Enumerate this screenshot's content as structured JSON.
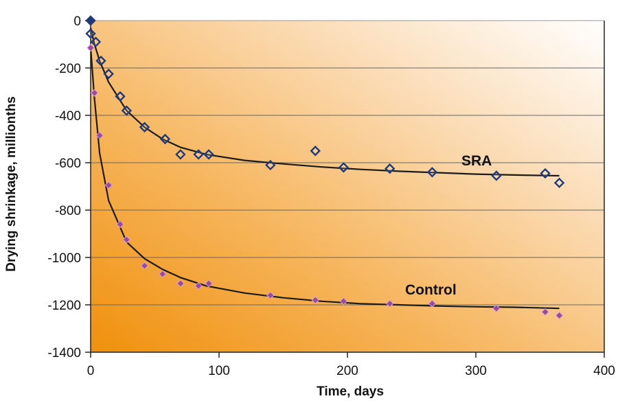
{
  "chart_data": {
    "type": "scatter",
    "title": "",
    "xlabel": "Time, days",
    "ylabel": "Drying shrinkage, millionths",
    "xlim": [
      0,
      400
    ],
    "ylim": [
      -1400,
      0
    ],
    "x_ticks": [
      "0",
      "100",
      "200",
      "300",
      "400"
    ],
    "y_ticks": [
      "0",
      "-200",
      "-400",
      "-600",
      "-800",
      "-1000",
      "-1200",
      "-1400"
    ],
    "grid": "horizontal",
    "background": "orange gradient",
    "series": [
      {
        "name": "SRA",
        "marker": "diamond-open",
        "color": "#1f3a7a",
        "x": [
          0,
          0,
          4,
          8,
          14,
          23,
          28,
          42,
          58,
          70,
          84,
          92,
          140,
          175,
          197,
          233,
          266,
          316,
          354,
          365
        ],
        "y": [
          0,
          -55,
          -90,
          -170,
          -225,
          -320,
          -380,
          -450,
          -500,
          -565,
          -565,
          -565,
          -610,
          -550,
          -620,
          -625,
          -640,
          -655,
          -645,
          -685
        ],
        "trend_x": [
          0,
          3,
          7,
          14,
          28,
          42,
          56,
          70,
          90,
          120,
          150,
          180,
          210,
          240,
          270,
          300,
          330,
          365
        ],
        "trend_y": [
          -30,
          -100,
          -170,
          -260,
          -380,
          -450,
          -500,
          -535,
          -565,
          -590,
          -605,
          -618,
          -628,
          -636,
          -642,
          -648,
          -652,
          -655
        ]
      },
      {
        "name": "Control",
        "marker": "diamond-filled",
        "color": "#9a4a9a",
        "x": [
          0,
          3,
          7,
          14,
          23,
          28,
          42,
          56,
          70,
          84,
          92,
          140,
          175,
          197,
          233,
          266,
          316,
          354,
          365
        ],
        "y": [
          -115,
          -305,
          -485,
          -695,
          -860,
          -925,
          -1035,
          -1070,
          -1110,
          -1120,
          -1110,
          -1160,
          -1180,
          -1185,
          -1195,
          -1195,
          -1215,
          -1230,
          -1245
        ],
        "trend_x": [
          0,
          3,
          7,
          14,
          28,
          42,
          56,
          70,
          90,
          120,
          150,
          180,
          210,
          240,
          270,
          300,
          330,
          365
        ],
        "trend_y": [
          -115,
          -330,
          -560,
          -760,
          -935,
          -1005,
          -1050,
          -1085,
          -1120,
          -1150,
          -1170,
          -1185,
          -1195,
          -1200,
          -1205,
          -1208,
          -1210,
          -1215
        ]
      }
    ],
    "series_labels": [
      "SRA",
      "Control"
    ]
  }
}
